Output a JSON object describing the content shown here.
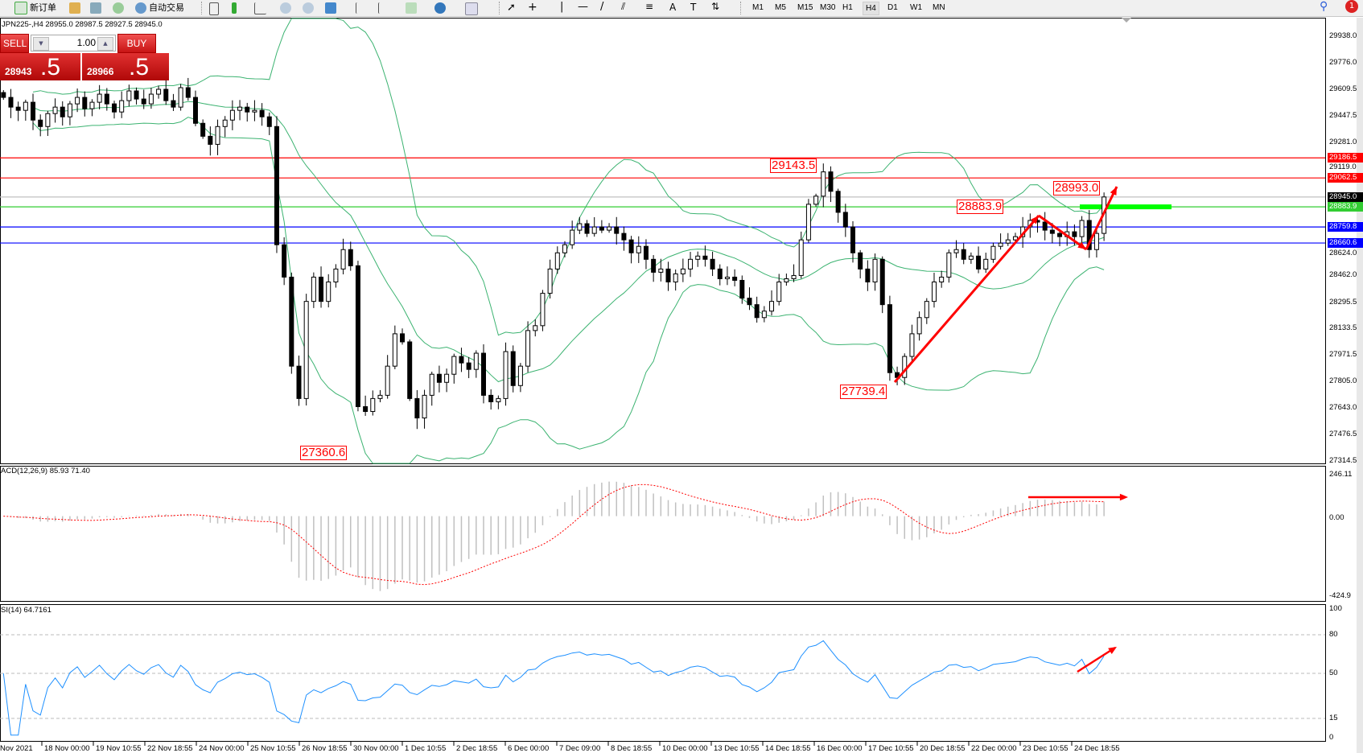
{
  "toolbar": {
    "new_order": "新订单",
    "auto_trading": "自动交易",
    "timeframes": [
      "M1",
      "M5",
      "M15",
      "M30",
      "H1",
      "H4",
      "D1",
      "W1",
      "MN"
    ],
    "active_timeframe": "H4",
    "notification_count": "1"
  },
  "chart_header": {
    "info": "JPN225-,H4  28955.0 28987.5 28927.5 28945.0"
  },
  "trade_panel": {
    "sell_label": "SELL",
    "buy_label": "BUY",
    "lot": "1.00",
    "bid_main": "28943",
    "bid_pip": ".5",
    "ask_main": "28966",
    "ask_pip": ".5"
  },
  "price_axis": {
    "labels": [
      "29938.0",
      "29776.0",
      "29609.5",
      "29447.5",
      "29281.0",
      "29119.0",
      "28624.0",
      "28462.0",
      "28295.5",
      "28133.5",
      "27971.5",
      "27805.0",
      "27643.0",
      "27476.5",
      "27314.5"
    ],
    "range": [
      27314.5,
      29938.0
    ]
  },
  "levels": [
    {
      "price": "29186.5",
      "color": "#ff0000"
    },
    {
      "price": "29062.5",
      "color": "#ff0000"
    },
    {
      "price": "28945.0",
      "color": "#000000",
      "line": "#c0c0c0"
    },
    {
      "price": "28883.9",
      "color": "#32cd32"
    },
    {
      "price": "28759.8",
      "color": "#0000ff"
    },
    {
      "price": "28660.6",
      "color": "#0000ff"
    }
  ],
  "annotations": [
    "29143.5",
    "27360.6",
    "27739.4",
    "28883.9",
    "28993.0"
  ],
  "candles": {
    "closes": [
      29560,
      29500,
      29480,
      29530,
      29420,
      29380,
      29460,
      29500,
      29440,
      29520,
      29560,
      29490,
      29530,
      29580,
      29520,
      29470,
      29540,
      29600,
      29550,
      29520,
      29580,
      29610,
      29540,
      29500,
      29620,
      29560,
      29400,
      29320,
      29270,
      29380,
      29420,
      29480,
      29500,
      29470,
      29480,
      29440,
      29380,
      28650,
      28450,
      27900,
      27700,
      28300,
      28450,
      28300,
      28420,
      28500,
      28620,
      28520,
      27650,
      27620,
      27700,
      27720,
      27900,
      28100,
      28050,
      27700,
      27580,
      27720,
      27850,
      27800,
      27850,
      27960,
      27920,
      27880,
      27980,
      27720,
      27680,
      27700,
      27990,
      27780,
      27900,
      28120,
      28150,
      28350,
      28500,
      28600,
      28650,
      28740,
      28780,
      28720,
      28760,
      28740,
      28760,
      28720,
      28680,
      28600,
      28640,
      28560,
      28480,
      28500,
      28420,
      28470,
      28500,
      28560,
      28580,
      28560,
      28500,
      28440,
      28450,
      28430,
      28320,
      28280,
      28200,
      28240,
      28300,
      28420,
      28440,
      28460,
      28680,
      28900,
      28950,
      29100,
      28980,
      28850,
      28760,
      28600,
      28500,
      28420,
      28560,
      28280,
      27860,
      27830,
      27960,
      28100,
      28200,
      28300,
      28420,
      28450,
      28600,
      28620,
      28560,
      28580,
      28500,
      28560,
      28640,
      28660,
      28680,
      28700,
      28760,
      28800,
      28790,
      28740,
      28720,
      28700,
      28730,
      28700,
      28800,
      28620,
      28720,
      28945
    ],
    "bull_color": "#ffffff",
    "bear_color": "#000000"
  },
  "bands_color": "#3cb371",
  "macd": {
    "label": "ACD(12,26,9) 85.93 71.40",
    "axis": [
      "246.11",
      "0.00",
      "-424.9"
    ],
    "range": [
      -424.9,
      246.11
    ],
    "signal_color": "#ff0000",
    "hist_color": "#c0c0c0"
  },
  "rsi": {
    "label": "SI(14) 64.7161",
    "axis": [
      "100",
      "80",
      "50",
      "15",
      "0"
    ],
    "line_color": "#1e90ff"
  },
  "time_axis": [
    "Nov 2021",
    "18 Nov 00:00",
    "19 Nov 10:55",
    "22 Nov 18:55",
    "24 Nov 00:00",
    "25 Nov 10:55",
    "26 Nov 18:55",
    "30 Nov 00:00",
    "1 Dec 10:55",
    "2 Dec 18:55",
    "6 Dec 00:00",
    "7 Dec 09:00",
    "8 Dec 18:55",
    "10 Dec 00:00",
    "13 Dec 10:55",
    "14 Dec 18:55",
    "16 Dec 00:00",
    "17 Dec 10:55",
    "20 Dec 18:55",
    "22 Dec 00:00",
    "23 Dec 10:55",
    "24 Dec 18:55"
  ]
}
